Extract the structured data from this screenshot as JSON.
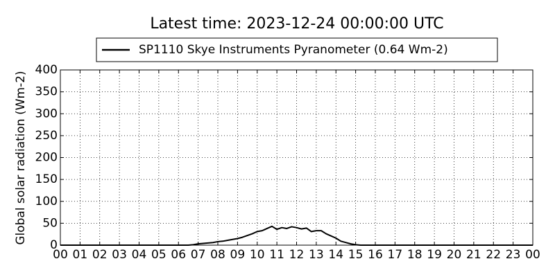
{
  "chart_data": {
    "type": "line",
    "title": "Latest time: 2023-12-24 00:00:00 UTC",
    "y_label": "Global solar radiation (Wm-2)",
    "x": [
      0,
      6.5,
      6.75,
      7,
      7.25,
      7.5,
      7.75,
      8,
      8.25,
      8.5,
      8.75,
      9,
      9.25,
      9.5,
      9.75,
      10,
      10.25,
      10.5,
      10.75,
      11,
      11.25,
      11.5,
      11.75,
      12,
      12.25,
      12.5,
      12.75,
      13,
      13.25,
      13.5,
      13.75,
      14,
      14.25,
      14.5,
      14.75,
      15,
      15.25,
      24
    ],
    "series": [
      {
        "name": "SP1110 Skye Instruments Pyranometer (0.64 Wm-2)",
        "color": "#000000",
        "values": [
          0,
          0,
          1,
          3,
          4,
          5,
          6,
          8,
          9,
          11,
          13,
          15,
          18,
          22,
          26,
          31,
          33,
          38,
          43,
          36,
          40,
          38,
          42,
          40,
          37,
          39,
          31,
          33,
          33,
          26,
          21,
          16,
          9,
          6,
          3,
          1,
          0,
          0
        ]
      }
    ],
    "xlim": [
      0,
      24
    ],
    "xticks": [
      {
        "value": 0,
        "label": "00"
      },
      {
        "value": 1,
        "label": "01"
      },
      {
        "value": 2,
        "label": "02"
      },
      {
        "value": 3,
        "label": "03"
      },
      {
        "value": 4,
        "label": "04"
      },
      {
        "value": 5,
        "label": "05"
      },
      {
        "value": 6,
        "label": "06"
      },
      {
        "value": 7,
        "label": "07"
      },
      {
        "value": 8,
        "label": "08"
      },
      {
        "value": 9,
        "label": "09"
      },
      {
        "value": 10,
        "label": "10"
      },
      {
        "value": 11,
        "label": "11"
      },
      {
        "value": 12,
        "label": "12"
      },
      {
        "value": 13,
        "label": "13"
      },
      {
        "value": 14,
        "label": "14"
      },
      {
        "value": 15,
        "label": "15"
      },
      {
        "value": 16,
        "label": "16"
      },
      {
        "value": 17,
        "label": "17"
      },
      {
        "value": 18,
        "label": "18"
      },
      {
        "value": 19,
        "label": "19"
      },
      {
        "value": 20,
        "label": "20"
      },
      {
        "value": 21,
        "label": "21"
      },
      {
        "value": 22,
        "label": "22"
      },
      {
        "value": 23,
        "label": "23"
      },
      {
        "value": 24,
        "label": "00"
      }
    ],
    "ylim": [
      0,
      400
    ],
    "yticks": [
      0,
      50,
      100,
      150,
      200,
      250,
      300,
      350,
      400
    ],
    "grid": true,
    "legend": "upper center"
  }
}
